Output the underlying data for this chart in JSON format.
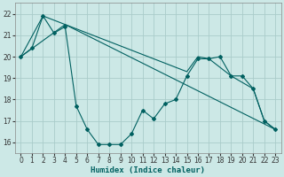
{
  "xlabel": "Humidex (Indice chaleur)",
  "bg_color": "#cce8e6",
  "grid_color": "#aaccca",
  "line_color": "#006060",
  "xlim": [
    -0.5,
    23.5
  ],
  "ylim": [
    15.5,
    22.5
  ],
  "yticks": [
    16,
    17,
    18,
    19,
    20,
    21,
    22
  ],
  "xtick_labels": [
    "0",
    "1",
    "2",
    "3",
    "4",
    "5",
    "6",
    "7",
    "8",
    "9",
    "10",
    "11",
    "12",
    "13",
    "14",
    "15",
    "16",
    "17",
    "18",
    "19",
    "20",
    "21",
    "22",
    "23"
  ],
  "xtick_vals": [
    0,
    1,
    2,
    3,
    4,
    5,
    6,
    7,
    8,
    9,
    10,
    11,
    12,
    13,
    14,
    15,
    16,
    17,
    18,
    19,
    20,
    21,
    22,
    23
  ],
  "line1_x": [
    0,
    1,
    2,
    3,
    4,
    5,
    6,
    7,
    8,
    9,
    10,
    11,
    12,
    13,
    14,
    15,
    16,
    17,
    18,
    19,
    20,
    21,
    22,
    23
  ],
  "line1_y": [
    20.0,
    20.4,
    21.9,
    21.1,
    21.4,
    17.7,
    16.6,
    15.9,
    15.9,
    15.9,
    16.4,
    17.5,
    17.1,
    17.8,
    18.0,
    19.1,
    19.9,
    19.9,
    20.0,
    19.1,
    19.1,
    18.5,
    17.0,
    16.6
  ],
  "line2_x": [
    0,
    2,
    4,
    23
  ],
  "line2_y": [
    20.0,
    21.9,
    21.5,
    16.6
  ],
  "line3_x": [
    0,
    4,
    15,
    16,
    17,
    19,
    21,
    22,
    23
  ],
  "line3_y": [
    20.0,
    21.5,
    19.3,
    20.0,
    19.9,
    19.1,
    18.5,
    17.0,
    16.6
  ]
}
